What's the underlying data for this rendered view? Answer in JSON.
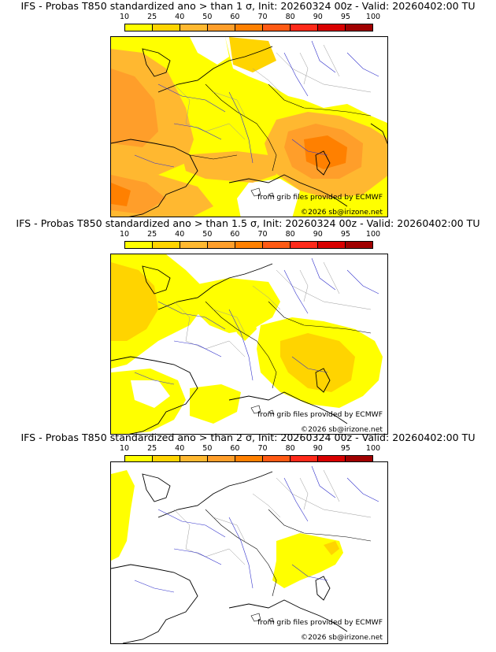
{
  "colors": {
    "c10": "#ffff00",
    "c25": "#ffd400",
    "c40": "#ffb830",
    "c50": "#ff9e2a",
    "c60": "#ff8000",
    "c70": "#ff5a14",
    "c80": "#ff2a1a",
    "c90": "#d80000",
    "c95": "#a00000",
    "c100": "#6a0000",
    "coast": "#000000",
    "river": "#3333cc",
    "border": "#999999"
  },
  "colorbar": {
    "ticks": [
      "10",
      "25",
      "40",
      "50",
      "60",
      "70",
      "80",
      "90",
      "95",
      "100"
    ],
    "segments": [
      "#ffff00",
      "#ffd400",
      "#ffb830",
      "#ff9e2a",
      "#ff8000",
      "#ff5a14",
      "#ff2a1a",
      "#d80000",
      "#a00000"
    ]
  },
  "panels": [
    {
      "title": "IFS - Probas T850  standardized ano > than 1 σ, Init: 20260324 00z - Valid: 20260402:00 TU",
      "credit_source": "from grib files provided by ECMWF",
      "credit_copyright": "©2026 sb@irizone.net"
    },
    {
      "title": "IFS - Probas T850  standardized ano > than 1.5 σ, Init: 20260324 00z - Valid: 20260402:00 TU",
      "credit_source": "from grib files provided by ECMWF",
      "credit_copyright": "©2026 sb@irizone.net"
    },
    {
      "title": "IFS - Probas T850  standardized ano > than 2 σ, Init: 20260324 00z - Valid: 20260402:00 TU",
      "credit_source": "from grib files provided by ECMWF",
      "credit_copyright": "©2026 sb@irizone.net"
    }
  ]
}
